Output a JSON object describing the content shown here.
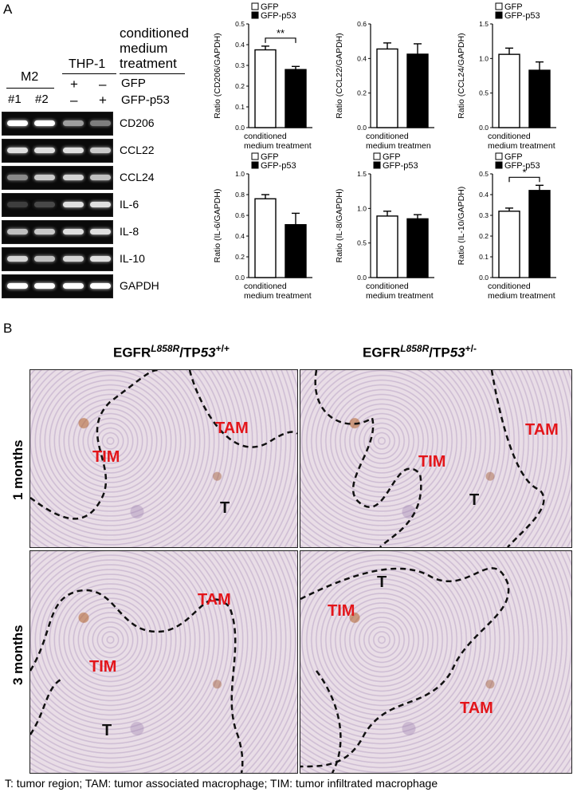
{
  "panel_a": {
    "letter": "A",
    "gel": {
      "header_treatment": [
        "conditioned",
        "medium",
        "treatment"
      ],
      "group_m2": "M2",
      "group_thp1": "THP-1",
      "row_gfp_label": "GFP",
      "row_p53_label": "GFP-p53",
      "lane_ids": [
        "#1",
        "#2"
      ],
      "gfp_signs": [
        "+",
        "–"
      ],
      "p53_signs": [
        "–",
        "+"
      ],
      "genes": [
        "CD206",
        "CCL22",
        "CCL24",
        "IL-6",
        "IL-8",
        "IL-10",
        "GAPDH"
      ],
      "band_intensity": [
        [
          1.0,
          1.0,
          0.55,
          0.4
        ],
        [
          0.85,
          0.85,
          0.85,
          0.75
        ],
        [
          0.45,
          0.75,
          0.8,
          0.7
        ],
        [
          0.1,
          0.15,
          0.85,
          0.85
        ],
        [
          0.7,
          0.75,
          0.85,
          0.85
        ],
        [
          0.8,
          0.7,
          0.8,
          0.85
        ],
        [
          1.0,
          1.0,
          1.0,
          1.0
        ]
      ]
    }
  },
  "chart_data": [
    {
      "type": "bar",
      "categories": [
        "GFP",
        "GFP-p53"
      ],
      "values": [
        0.375,
        0.28
      ],
      "errors": [
        0.018,
        0.015
      ],
      "ylabel": "Ratio (CD206/GAPDH)",
      "xlabel": [
        "conditioned",
        "medium treatment"
      ],
      "ylim": [
        0,
        0.5
      ],
      "yticks": [
        "0.0",
        "0.1",
        "0.2",
        "0.3",
        "0.4",
        "0.5"
      ],
      "significance": "**",
      "legend": [
        "GFP",
        "GFP-p53"
      ]
    },
    {
      "type": "bar",
      "categories": [
        "GFP",
        "GFP-p53"
      ],
      "values": [
        0.455,
        0.425
      ],
      "errors": [
        0.035,
        0.06
      ],
      "ylabel": "Ratio (CCL22/GAPDH)",
      "xlabel": [
        "conditioned",
        "medium treatmen"
      ],
      "ylim": [
        0,
        0.6
      ],
      "yticks": [
        "0.0",
        "0.2",
        "0.4",
        "0.6"
      ],
      "significance": "",
      "legend": []
    },
    {
      "type": "bar",
      "categories": [
        "GFP",
        "GFP-p53"
      ],
      "values": [
        1.06,
        0.83
      ],
      "errors": [
        0.09,
        0.12
      ],
      "ylabel": "Ratio (CCL24/GAPDH)",
      "xlabel": [
        "conditioned",
        "medium treatment"
      ],
      "ylim": [
        0,
        1.5
      ],
      "yticks": [
        "0.0",
        "0.5",
        "1.0",
        "1.5"
      ],
      "significance": "",
      "legend": [
        "GFP",
        "GFP-p53"
      ]
    },
    {
      "type": "bar",
      "categories": [
        "GFP",
        "GFP-p53"
      ],
      "values": [
        0.76,
        0.51
      ],
      "errors": [
        0.04,
        0.11
      ],
      "ylabel": "Ratio (IL-6/GAPDH)",
      "xlabel": [
        "conditioned",
        "medium treatment"
      ],
      "ylim": [
        0,
        1.0
      ],
      "yticks": [
        "0.0",
        "0.2",
        "0.4",
        "0.6",
        "0.8",
        "1.0"
      ],
      "significance": "",
      "legend": [
        "GFP",
        "GFP-p53"
      ]
    },
    {
      "type": "bar",
      "categories": [
        "GFP",
        "GFP-p53"
      ],
      "values": [
        0.89,
        0.85
      ],
      "errors": [
        0.07,
        0.06
      ],
      "ylabel": "Ratio (IL-8/GAPDH)",
      "xlabel": [
        "conditioned",
        "medium treatment"
      ],
      "ylim": [
        0,
        1.5
      ],
      "yticks": [
        "0.0",
        "0.5",
        "1.0",
        "1.5"
      ],
      "significance": "",
      "legend": [
        "GFP",
        "GFP-p53"
      ]
    },
    {
      "type": "bar",
      "categories": [
        "GFP",
        "GFP-p53"
      ],
      "values": [
        0.32,
        0.42
      ],
      "errors": [
        0.015,
        0.025
      ],
      "ylabel": "Ratio (IL-10/GAPDH)",
      "xlabel": [
        "conditioned",
        "medium treatment"
      ],
      "ylim": [
        0,
        0.5
      ],
      "yticks": [
        "0.0",
        "0.1",
        "0.2",
        "0.3",
        "0.4",
        "0.5"
      ],
      "significance": "*",
      "legend": [
        "GFP",
        "GFP-p53"
      ]
    }
  ],
  "panel_b": {
    "letter": "B",
    "col_heads": [
      {
        "base": "EGFR",
        "sup1": "L858R",
        "mid": "/TP",
        "italic": "53",
        "sup2": "+/+"
      },
      {
        "base": "EGFR",
        "sup1": "L858R",
        "mid": "/TP",
        "italic": "53",
        "sup2": "+/-"
      }
    ],
    "row_labels": [
      "1 months",
      "3 months"
    ],
    "tags": {
      "tim": "TIM",
      "tam": "TAM",
      "t": "T"
    },
    "footnote": "T: tumor region; TAM: tumor associated macrophage; TIM: tumor infiltrated macrophage"
  }
}
